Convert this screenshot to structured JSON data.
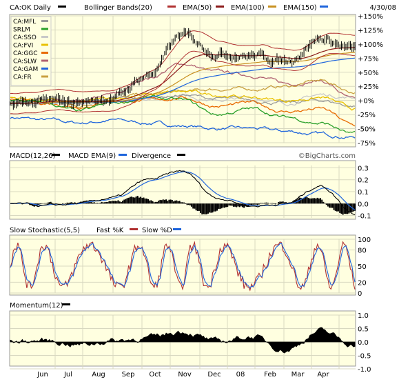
{
  "header": {
    "symbol_label": "CA:OK Daily",
    "bollinger_label": "Bollinger Bands(20)",
    "ema50_label": "EMA(50)",
    "ema100_label": "EMA(100)",
    "ema150_label": "EMA(150)",
    "date": "4/30/08",
    "colors": {
      "price": "#000000",
      "bollinger": "#b03030",
      "ema50": "#8b1a1a",
      "ema100": "#c89020",
      "ema150": "#1e64dc"
    }
  },
  "legend": [
    {
      "label": "CA:MFL",
      "color": "#9a9a9a"
    },
    {
      "label": "SRLM",
      "color": "#2aa02a"
    },
    {
      "label": "CA:SSO",
      "color": "#c8c8c8"
    },
    {
      "label": "CA:FVI",
      "color": "#e8c000"
    },
    {
      "label": "CA:GGC",
      "color": "#e86a00"
    },
    {
      "label": "CA:SLW",
      "color": "#b06070"
    },
    {
      "label": "CA:GAM",
      "color": "#1e64dc"
    },
    {
      "label": "CA:FR",
      "color": "#c8a040"
    }
  ],
  "macd": {
    "label": "MACD(12,26)",
    "ema_label": "MACD EMA(9)",
    "divergence_label": "Divergence",
    "colors": {
      "macd": "#000000",
      "ema": "#1e64dc",
      "divergence": "#b03030"
    }
  },
  "stoch": {
    "label": "Slow Stochastic(5,5)",
    "fast_label": "Fast %K",
    "slow_label": "Slow %D",
    "colors": {
      "fast": "#b03030",
      "slow": "#1e64dc"
    }
  },
  "momentum": {
    "label": "Momentum(12)",
    "color": "#000000"
  },
  "watermark": "©BigCharts.com",
  "chart_data": [
    {
      "type": "line",
      "title": "CA:OK Daily",
      "x": [
        "Jun",
        "Jul",
        "Aug",
        "Sep",
        "Oct",
        "Nov",
        "Dec",
        "08",
        "Feb",
        "Mar",
        "Apr"
      ],
      "y_ticks": [
        "+150%",
        "+125%",
        "+100%",
        "+75%",
        "+50%",
        "+25%",
        "+0%",
        "-25%",
        "-50%",
        "-75%"
      ],
      "ylim": [
        -75,
        150
      ],
      "series": [
        {
          "name": "CA:OK",
          "values": [
            -5,
            -2,
            -3,
            5,
            45,
            115,
            85,
            80,
            70,
            110,
            90
          ]
        },
        {
          "name": "CA:MFL",
          "values": [
            -5,
            0,
            -2,
            2,
            5,
            10,
            3,
            0,
            -5,
            0,
            -10
          ]
        },
        {
          "name": "SRLM",
          "values": [
            0,
            -5,
            -20,
            -5,
            5,
            0,
            -25,
            -15,
            -30,
            -40,
            -60
          ]
        },
        {
          "name": "CA:SSO",
          "values": [
            -5,
            -3,
            -10,
            0,
            5,
            10,
            0,
            5,
            -5,
            10,
            5
          ]
        },
        {
          "name": "CA:FVI",
          "values": [
            5,
            0,
            -5,
            5,
            10,
            15,
            10,
            5,
            0,
            5,
            -15
          ]
        },
        {
          "name": "CA:GGC",
          "values": [
            0,
            -5,
            -10,
            0,
            0,
            5,
            -10,
            -5,
            -20,
            -15,
            -45
          ]
        },
        {
          "name": "CA:SLW",
          "values": [
            -5,
            0,
            -5,
            10,
            40,
            65,
            50,
            45,
            30,
            35,
            0
          ]
        },
        {
          "name": "CA:GAM",
          "values": [
            -30,
            -35,
            -40,
            -35,
            -40,
            -45,
            -50,
            -50,
            -55,
            -60,
            -65
          ]
        },
        {
          "name": "CA:FR",
          "values": [
            -5,
            0,
            -10,
            5,
            10,
            15,
            20,
            20,
            25,
            35,
            15
          ]
        }
      ]
    },
    {
      "type": "line",
      "title": "MACD(12,26)",
      "y_ticks": [
        "0.3",
        "0.2",
        "0.1",
        "0.0",
        "-0.1"
      ],
      "ylim": [
        -0.12,
        0.32
      ]
    },
    {
      "type": "line",
      "title": "Slow Stochastic(5,5)",
      "y_ticks": [
        "100",
        "80",
        "50",
        "20",
        "0"
      ],
      "ylim": [
        0,
        100
      ]
    },
    {
      "type": "area",
      "title": "Momentum(12)",
      "y_ticks": [
        "1.0",
        "0.5",
        "0.0",
        "-0.5",
        "-1.0"
      ],
      "ylim": [
        -1.0,
        1.0
      ]
    }
  ]
}
